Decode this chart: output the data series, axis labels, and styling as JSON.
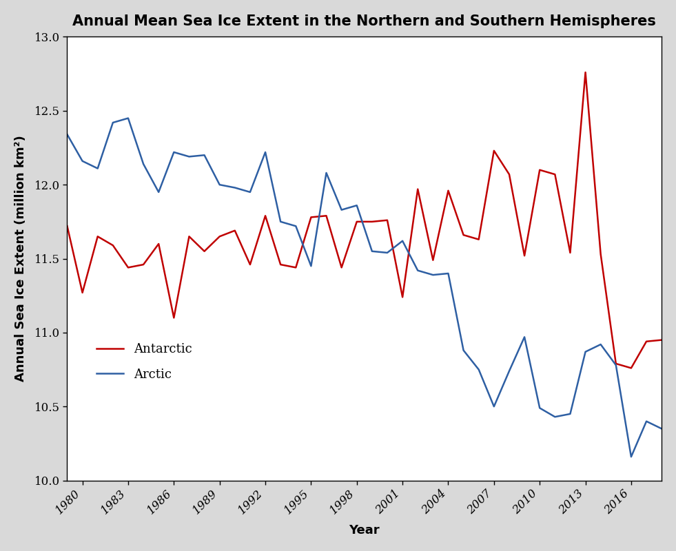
{
  "title": "Annual Mean Sea Ice Extent in the Northern and Southern Hemispheres",
  "xlabel": "Year",
  "ylabel": "Annual Sea Ice Extent (million km²)",
  "years": [
    1979,
    1980,
    1981,
    1982,
    1983,
    1984,
    1985,
    1986,
    1987,
    1988,
    1989,
    1990,
    1991,
    1992,
    1993,
    1994,
    1995,
    1996,
    1997,
    1998,
    1999,
    2000,
    2001,
    2002,
    2003,
    2004,
    2005,
    2006,
    2007,
    2008,
    2009,
    2010,
    2011,
    2012,
    2013,
    2014,
    2015,
    2016,
    2017,
    2018
  ],
  "arctic": [
    12.34,
    12.16,
    12.11,
    12.42,
    12.45,
    12.14,
    11.95,
    12.22,
    12.19,
    12.2,
    12.0,
    11.98,
    11.95,
    12.22,
    11.75,
    11.72,
    11.45,
    12.08,
    11.83,
    11.86,
    11.55,
    11.54,
    11.62,
    11.42,
    11.39,
    11.4,
    10.88,
    10.75,
    10.5,
    10.74,
    10.97,
    10.49,
    10.43,
    10.45,
    10.87,
    10.92,
    10.78,
    10.16,
    10.4,
    10.35
  ],
  "antarctic": [
    11.72,
    11.27,
    11.65,
    11.59,
    11.44,
    11.46,
    11.6,
    11.1,
    11.65,
    11.55,
    11.65,
    11.69,
    11.46,
    11.79,
    11.46,
    11.44,
    11.78,
    11.79,
    11.44,
    11.75,
    11.75,
    11.76,
    11.24,
    11.97,
    11.49,
    11.96,
    11.66,
    11.63,
    12.23,
    12.07,
    11.52,
    12.1,
    12.07,
    11.54,
    12.76,
    11.53,
    10.79,
    10.76,
    10.94,
    10.95
  ],
  "arctic_color": "#2e5fa3",
  "antarctic_color": "#c00000",
  "ylim": [
    10.0,
    13.0
  ],
  "yticks": [
    10.0,
    10.5,
    11.0,
    11.5,
    12.0,
    12.5,
    13.0
  ],
  "xtick_years": [
    1980,
    1983,
    1986,
    1989,
    1992,
    1995,
    1998,
    2001,
    2004,
    2007,
    2010,
    2013,
    2016
  ],
  "legend_antarctic": "Antarctic",
  "legend_arctic": "Arctic",
  "title_fontsize": 15,
  "axis_label_fontsize": 13,
  "tick_fontsize": 12,
  "legend_fontsize": 13,
  "linewidth": 1.8,
  "figure_facecolor": "#d9d9d9",
  "axes_facecolor": "#ffffff"
}
